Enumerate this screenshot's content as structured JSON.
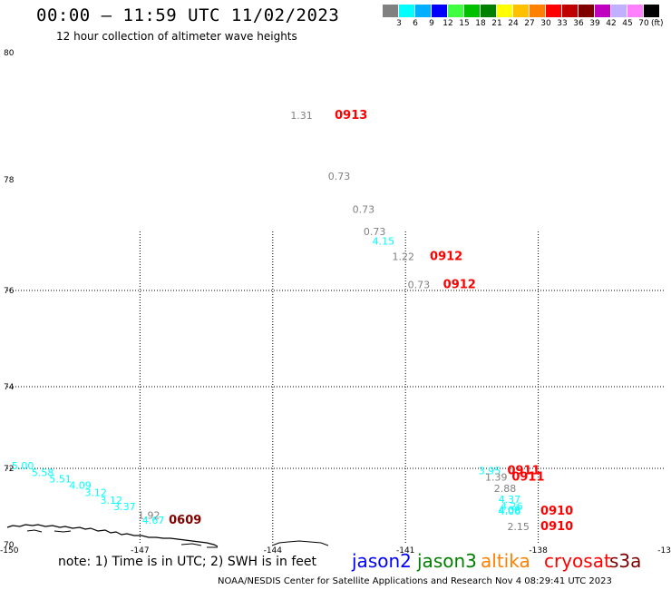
{
  "header": {
    "title": "00:00 – 11:59 UTC 11/02/2023",
    "subtitle": "12 hour collection of altimeter wave heights"
  },
  "legend": {
    "colors": [
      "#808080",
      "#00ffff",
      "#00b0ff",
      "#0000ff",
      "#40ff40",
      "#00c000",
      "#008000",
      "#ffff00",
      "#ffc000",
      "#ff8000",
      "#ff0000",
      "#c00000",
      "#800000",
      "#c000c0",
      "#c0b0ff",
      "#ff80ff",
      "#000000"
    ],
    "ticks": [
      "3",
      "6",
      "9",
      "12",
      "15",
      "18",
      "21",
      "24",
      "27",
      "30",
      "33",
      "36",
      "39",
      "42",
      "45",
      "70"
    ],
    "unit": "(ft)"
  },
  "axes": {
    "lat_labels": [
      {
        "text": "80",
        "lat": 80
      },
      {
        "text": "78",
        "lat": 78
      },
      {
        "text": "76",
        "lat": 76
      },
      {
        "text": "74",
        "lat": 74
      },
      {
        "text": "72",
        "lat": 72
      },
      {
        "text": "70",
        "lat": 70
      }
    ],
    "lon_labels": [
      {
        "text": "-150",
        "lon": -150
      },
      {
        "text": "-147",
        "lon": -147
      },
      {
        "text": "-144",
        "lon": -144
      },
      {
        "text": "-141",
        "lon": -141
      },
      {
        "text": "-138",
        "lon": -138
      },
      {
        "text": "-13",
        "lon": -135
      }
    ],
    "grid_lats": [
      76,
      74,
      72
    ],
    "grid_lons": [
      -147,
      -144,
      -141,
      -138
    ]
  },
  "observations": [
    {
      "text": "1.31",
      "lat": 78.96,
      "lon": -143.6,
      "color": "#808080"
    },
    {
      "text": "0913",
      "lat": 78.96,
      "lon": -142.6,
      "color": "#ff0000",
      "pass": true
    },
    {
      "text": "0.73",
      "lat": 78.0,
      "lon": -142.75,
      "color": "#808080"
    },
    {
      "text": "0.73",
      "lat": 77.4,
      "lon": -142.2,
      "color": "#808080"
    },
    {
      "text": "0.73",
      "lat": 77.0,
      "lon": -141.95,
      "color": "#808080"
    },
    {
      "text": "4.15",
      "lat": 76.83,
      "lon": -141.75,
      "color": "#00ffff"
    },
    {
      "text": "1.22",
      "lat": 76.55,
      "lon": -141.3,
      "color": "#808080"
    },
    {
      "text": "0912",
      "lat": 76.55,
      "lon": -140.45,
      "color": "#ff0000",
      "pass": true
    },
    {
      "text": "0.73",
      "lat": 76.04,
      "lon": -140.95,
      "color": "#808080"
    },
    {
      "text": "0912",
      "lat": 76.04,
      "lon": -140.15,
      "color": "#ff0000",
      "pass": true
    },
    {
      "text": "5.00",
      "lat": 71.98,
      "lon": -149.9,
      "color": "#00ffff"
    },
    {
      "text": "5.58",
      "lat": 71.8,
      "lon": -149.45,
      "color": "#00ffff"
    },
    {
      "text": "5.51",
      "lat": 71.63,
      "lon": -149.05,
      "color": "#00ffff"
    },
    {
      "text": "4.09",
      "lat": 71.46,
      "lon": -148.6,
      "color": "#00ffff"
    },
    {
      "text": "3.12",
      "lat": 71.27,
      "lon": -148.25,
      "color": "#00ffff"
    },
    {
      "text": "3.12",
      "lat": 71.07,
      "lon": -147.9,
      "color": "#00ffff"
    },
    {
      "text": "3.37",
      "lat": 70.9,
      "lon": -147.6,
      "color": "#00ffff"
    },
    {
      "text": "1.92",
      "lat": 70.68,
      "lon": -147.05,
      "color": "#808080"
    },
    {
      "text": "4.67",
      "lat": 70.55,
      "lon": -146.95,
      "color": "#00ffff"
    },
    {
      "text": "0609",
      "lat": 70.55,
      "lon": -146.35,
      "color": "#800000",
      "pass": true
    },
    {
      "text": "3.95",
      "lat": 71.85,
      "lon": -139.35,
      "color": "#00ffff"
    },
    {
      "text": "0911",
      "lat": 71.85,
      "lon": -138.7,
      "color": "#ff0000",
      "pass": true
    },
    {
      "text": "1.39",
      "lat": 71.68,
      "lon": -139.2,
      "color": "#808080"
    },
    {
      "text": "0911",
      "lat": 71.68,
      "lon": -138.6,
      "color": "#ff0000",
      "pass": true
    },
    {
      "text": "2.88",
      "lat": 71.38,
      "lon": -139.0,
      "color": "#808080"
    },
    {
      "text": "4.37",
      "lat": 71.1,
      "lon": -138.9,
      "color": "#00ffff"
    },
    {
      "text": "4.26",
      "lat": 70.92,
      "lon": -138.85,
      "color": "#00ffff"
    },
    {
      "text": "4.08",
      "lat": 70.82,
      "lon": -138.9,
      "color": "#00ffff"
    },
    {
      "text": "4.06",
      "lat": 70.78,
      "lon": -138.9,
      "color": "#00ffff"
    },
    {
      "text": "0910",
      "lat": 70.78,
      "lon": -137.95,
      "color": "#ff0000",
      "pass": true
    },
    {
      "text": "2.15",
      "lat": 70.38,
      "lon": -138.7,
      "color": "#808080"
    },
    {
      "text": "0910",
      "lat": 70.38,
      "lon": -137.95,
      "color": "#ff0000",
      "pass": true
    }
  ],
  "footer": {
    "note": "note: 1) Time is in UTC; 2) SWH is in feet",
    "satellites": [
      {
        "name": "jason2",
        "color": "#0000ff"
      },
      {
        "name": "jason3",
        "color": "#008000"
      },
      {
        "name": "altika",
        "color": "#ff8000"
      },
      {
        "name": "cryosat",
        "color": "#ff0000"
      },
      {
        "name": "s3a",
        "color": "#800000"
      }
    ],
    "credit": "NOAA/NESDIS Center for Satellite Applications and Research   Nov  4 08:29:41 UTC 2023"
  }
}
